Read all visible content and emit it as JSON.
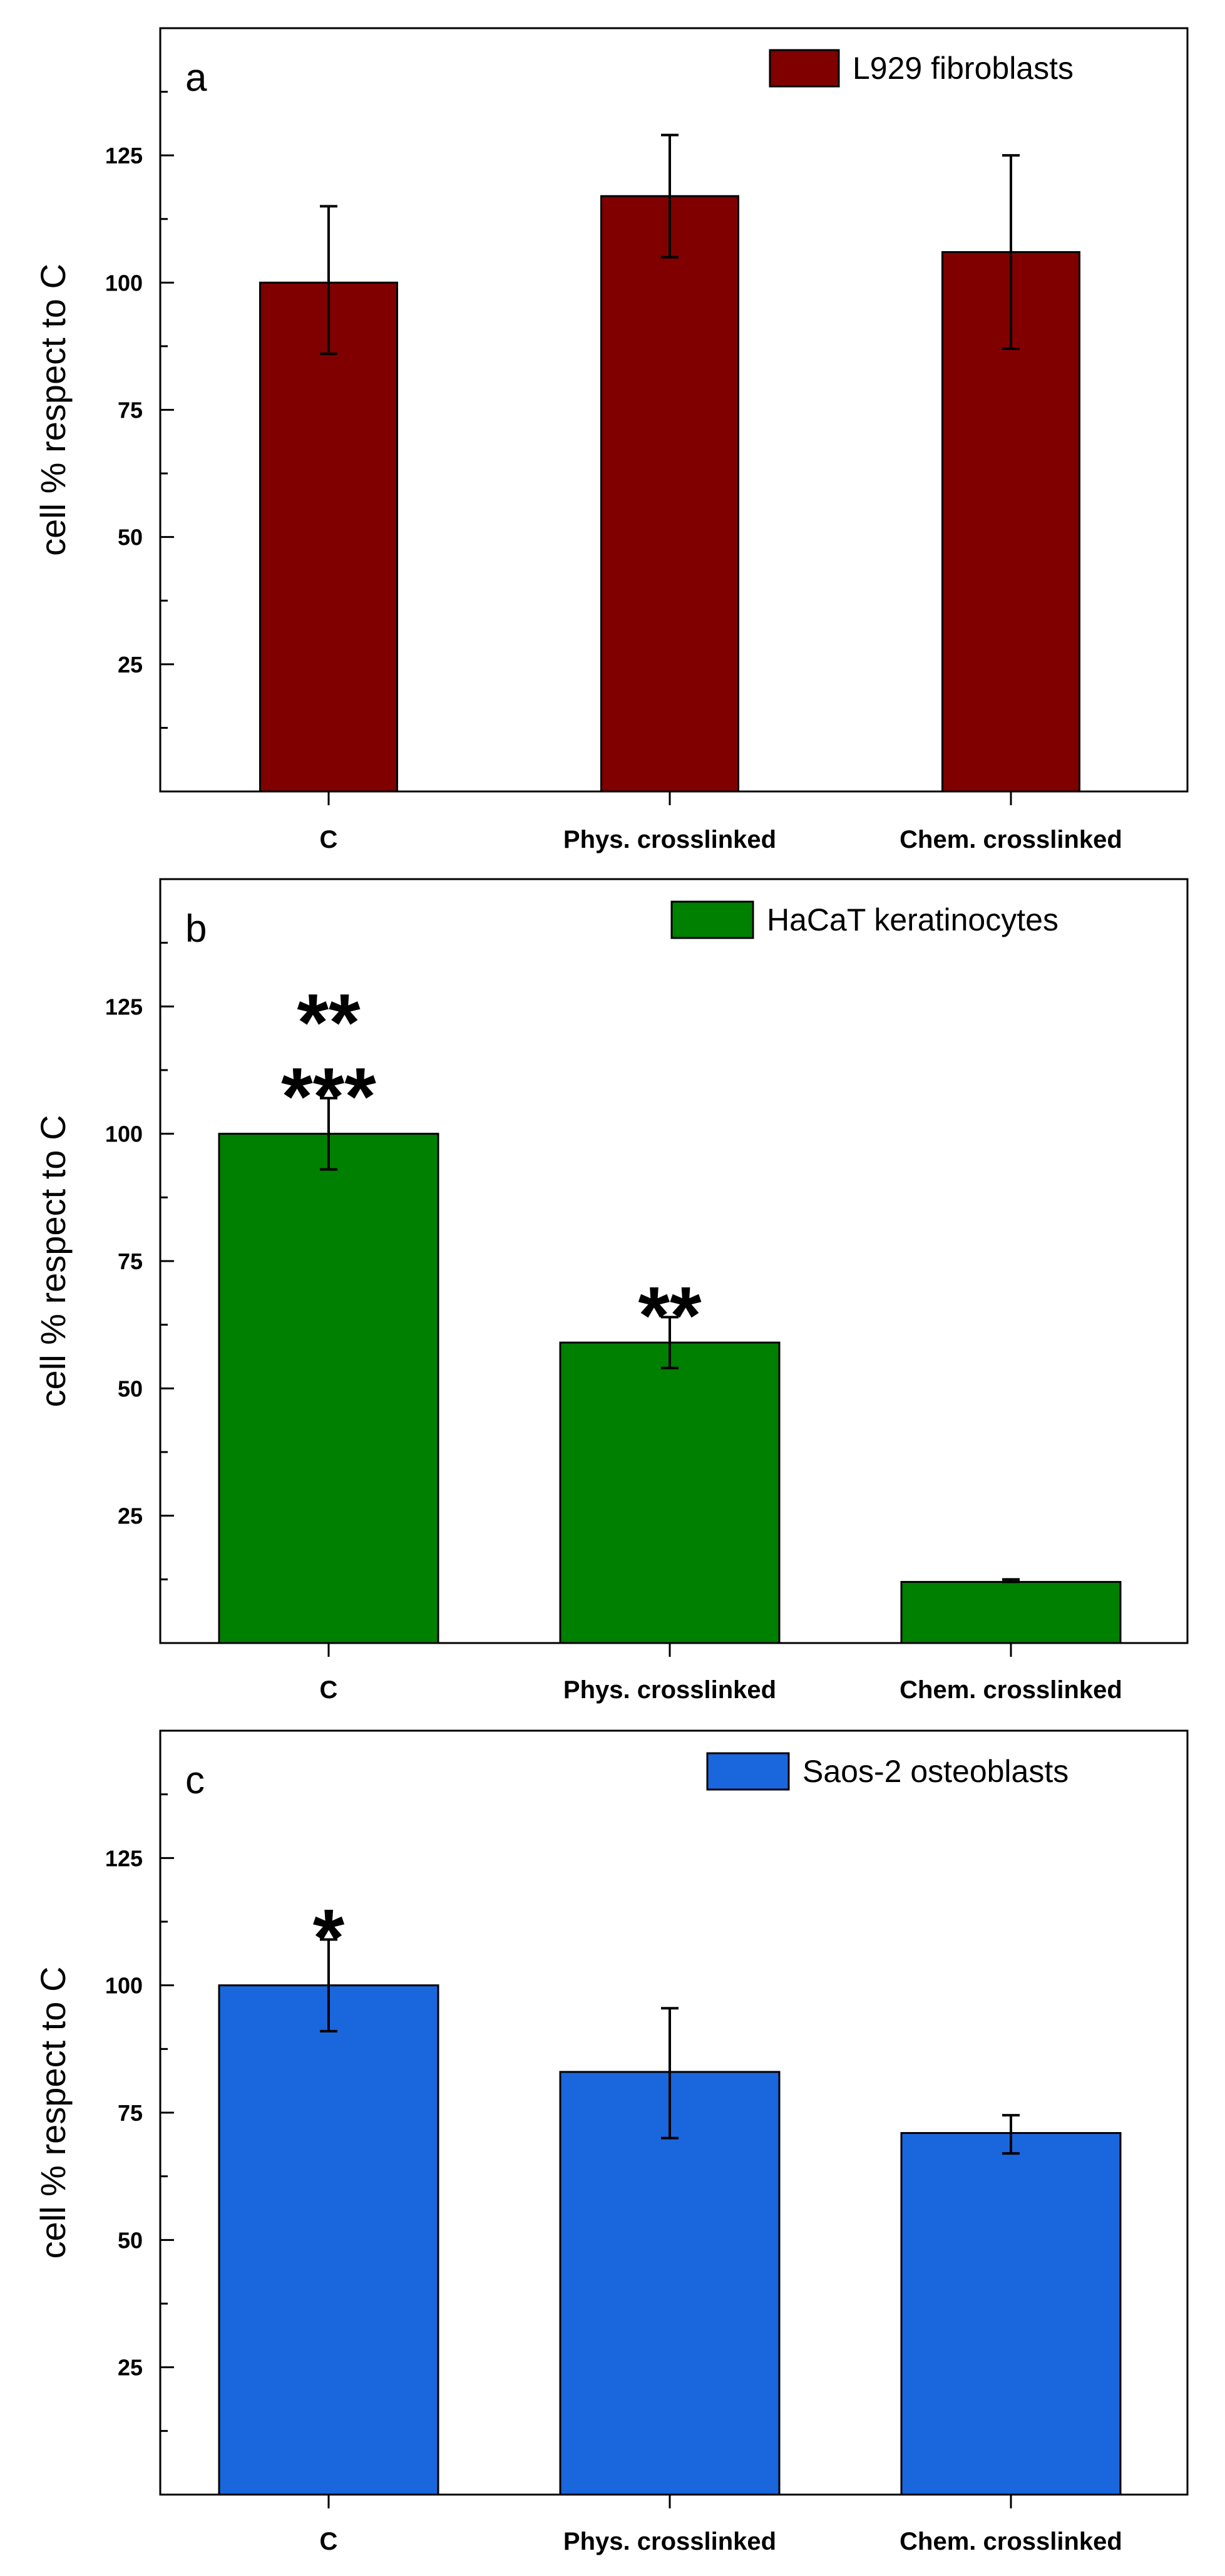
{
  "chart_data": [
    {
      "type": "bar",
      "panel": "a",
      "legend": "L929 fibroblasts",
      "ylabel": "cell % respect to C",
      "xlabel": "",
      "categories": [
        "C",
        "Phys. crosslinked",
        "Chem. crosslinked"
      ],
      "values": [
        100,
        117,
        106
      ],
      "errors": [
        {
          "low": 86,
          "high": 115
        },
        {
          "low": 105,
          "high": 129
        },
        {
          "low": 87,
          "high": 125
        }
      ],
      "annotations": [
        "",
        "",
        ""
      ],
      "ylim": [
        0,
        150
      ],
      "yticks": [
        25,
        50,
        75,
        100,
        125
      ],
      "color": "#800000"
    },
    {
      "type": "bar",
      "panel": "b",
      "legend": "HaCaT keratinocytes",
      "ylabel": "cell % respect to C",
      "xlabel": "",
      "categories": [
        "C",
        "Phys. crosslinked",
        "Chem. crosslinked"
      ],
      "values": [
        100,
        59,
        12
      ],
      "errors": [
        {
          "low": 93,
          "high": 107
        },
        {
          "low": 54,
          "high": 64
        },
        {
          "low": 12,
          "high": 12.5
        }
      ],
      "annotations": [
        [
          "**",
          "***"
        ],
        [
          "**"
        ],
        []
      ],
      "ylim": [
        0,
        150
      ],
      "yticks": [
        25,
        50,
        75,
        100,
        125
      ],
      "color": "#008000"
    },
    {
      "type": "bar",
      "panel": "c",
      "legend": "Saos-2 osteoblasts",
      "ylabel": "cell % respect to C",
      "xlabel": "",
      "categories": [
        "C",
        "Phys. crosslinked",
        "Chem. crosslinked"
      ],
      "values": [
        100,
        83,
        71
      ],
      "errors": [
        {
          "low": 91,
          "high": 109
        },
        {
          "low": 70,
          "high": 95.5
        },
        {
          "low": 67,
          "high": 74.5
        }
      ],
      "annotations": [
        [
          "*"
        ],
        [],
        []
      ],
      "ylim": [
        0,
        150
      ],
      "yticks": [
        25,
        50,
        75,
        100,
        125
      ],
      "color": "#1a66dd"
    }
  ]
}
